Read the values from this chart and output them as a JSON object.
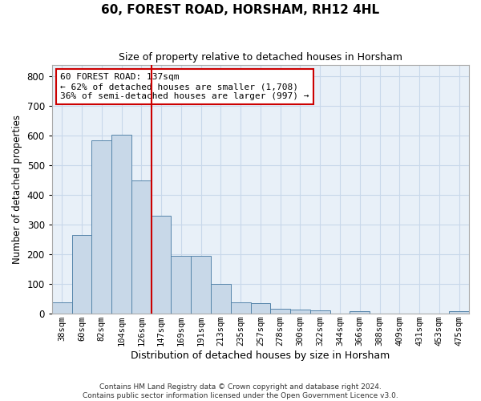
{
  "title": "60, FOREST ROAD, HORSHAM, RH12 4HL",
  "subtitle": "Size of property relative to detached houses in Horsham",
  "xlabel": "Distribution of detached houses by size in Horsham",
  "ylabel": "Number of detached properties",
  "categories": [
    "38sqm",
    "60sqm",
    "82sqm",
    "104sqm",
    "126sqm",
    "147sqm",
    "169sqm",
    "191sqm",
    "213sqm",
    "235sqm",
    "257sqm",
    "278sqm",
    "300sqm",
    "322sqm",
    "344sqm",
    "366sqm",
    "388sqm",
    "409sqm",
    "431sqm",
    "453sqm",
    "475sqm"
  ],
  "values": [
    37,
    265,
    585,
    603,
    450,
    330,
    195,
    195,
    100,
    38,
    35,
    18,
    15,
    10,
    0,
    8,
    0,
    0,
    0,
    0,
    8
  ],
  "bar_color": "#c8d8e8",
  "bar_edge_color": "#5585aa",
  "grid_color": "#c8d8ea",
  "background_color": "#e8f0f8",
  "vline_color": "#cc0000",
  "vline_pos": 4.5,
  "annotation_text": "60 FOREST ROAD: 137sqm\n← 62% of detached houses are smaller (1,708)\n36% of semi-detached houses are larger (997) →",
  "annotation_box_color": "#cc0000",
  "ylim": [
    0,
    840
  ],
  "yticks": [
    0,
    100,
    200,
    300,
    400,
    500,
    600,
    700,
    800
  ],
  "footer_line1": "Contains HM Land Registry data © Crown copyright and database right 2024.",
  "footer_line2": "Contains public sector information licensed under the Open Government Licence v3.0."
}
